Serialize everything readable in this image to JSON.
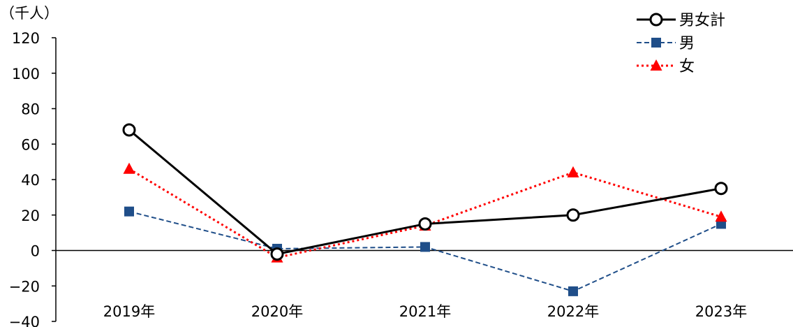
{
  "chart_data": {
    "type": "line",
    "unit_label": "（千人）",
    "categories": [
      "2019年",
      "2020年",
      "2021年",
      "2022年",
      "2023年"
    ],
    "ylim": [
      -40,
      120
    ],
    "yticks": [
      120,
      100,
      80,
      60,
      40,
      20,
      0,
      -20,
      -40
    ],
    "ytick_labels": [
      "120",
      "100",
      "80",
      "60",
      "40",
      "20",
      "0",
      "−20",
      "−40"
    ],
    "grid": false,
    "legend_position": "top-right",
    "series": [
      {
        "name": "男女計",
        "values": [
          68,
          -2,
          15,
          20,
          35
        ],
        "color": "#000000",
        "line_style": "solid",
        "marker": "circle-open"
      },
      {
        "name": "男",
        "values": [
          22,
          1,
          2,
          -23,
          15
        ],
        "color": "#1f4e89",
        "line_style": "dashed",
        "marker": "square"
      },
      {
        "name": "女",
        "values": [
          46,
          -4,
          14,
          44,
          19
        ],
        "color": "#ff0000",
        "line_style": "dotted",
        "marker": "triangle"
      }
    ]
  }
}
